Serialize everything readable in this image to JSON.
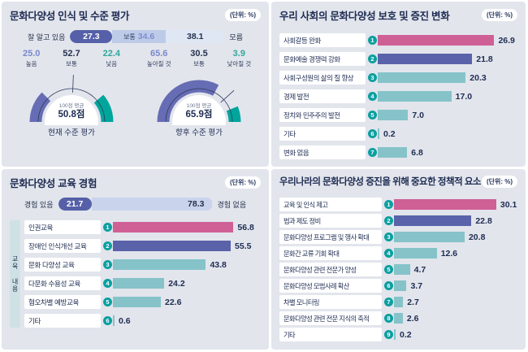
{
  "unit_label": "(단위: %)",
  "colors": {
    "pink": "#cf6096",
    "purple": "#5a62a9",
    "teal": "#85c3c9",
    "teal_dark": "#0b9fa0",
    "navy": "#1e2c52",
    "gauge_purple": "#666db4",
    "gauge_teal": "#00a59c",
    "stack_dark": "#5560a8",
    "stack_mid": "#bdcbe9",
    "stack_light": "#dfe7f4",
    "stack_rest": "#c9d4ec",
    "value_purple": "#7b88cc",
    "value_dark": "#26324f",
    "value_teal": "#2fa89e"
  },
  "chart_data": [
    {
      "id": "awareness_and_level",
      "type": "stacked-bar+gauges",
      "title": "문화다양성 인식 및 수준 평가",
      "unit": "(단위: %)",
      "awareness_segments": [
        {
          "label": "잘 알고 있음",
          "value": 27.3
        },
        {
          "label": "보통",
          "value": 34.6
        },
        {
          "label": "모름",
          "value": 38.1
        }
      ],
      "gauges": [
        {
          "caption": "현재 수준 평가",
          "center_label": "100점 평균",
          "center_value": "50.8점",
          "items": [
            {
              "label": "높음",
              "value": 25.0
            },
            {
              "label": "보통",
              "value": 52.7
            },
            {
              "label": "낮음",
              "value": 22.4
            }
          ]
        },
        {
          "caption": "향후 수준 평가",
          "center_label": "100점 평균",
          "center_value": "65.9점",
          "items": [
            {
              "label": "높아질 것",
              "value": 65.6
            },
            {
              "label": "보통",
              "value": 30.5
            },
            {
              "label": "낮아질 것",
              "value": 3.9
            }
          ]
        }
      ]
    },
    {
      "id": "protection_promotion_change",
      "type": "bar",
      "title": "우리 사회의 문화다양성 보호 및 증진 변화",
      "unit": "(단위: %)",
      "orientation": "horizontal",
      "categories": [
        "사회갈등 완화",
        "문화예술 경쟁력 강화",
        "사회구성원의 삶의 질 향상",
        "경제 발전",
        "정치와 민주주의 발전",
        "기타",
        "변화 없음"
      ],
      "values": [
        26.9,
        21.8,
        20.3,
        17.0,
        7.0,
        0.2,
        6.8
      ],
      "bar_colors": [
        "pink",
        "purple",
        "teal",
        "teal",
        "teal",
        "teal",
        "teal"
      ],
      "xmax": 30
    },
    {
      "id": "education_experience",
      "type": "stacked-bar+bar",
      "title": "문화다양성 교육 경험",
      "unit": "(단위: %)",
      "experience_segments": [
        {
          "label": "경험 있음",
          "value": 21.7
        },
        {
          "label": "경험 없음",
          "value": 78.3
        }
      ],
      "group_label": "교육 내용",
      "orientation": "horizontal",
      "categories": [
        "인권교육",
        "장애인 인식개선 교육",
        "문화 다양성 교육",
        "다문화 수용성 교육",
        "혐오차별 예방교육",
        "기타"
      ],
      "values": [
        56.8,
        55.5,
        43.8,
        24.2,
        22.6,
        0.6
      ],
      "bar_colors": [
        "pink",
        "purple",
        "teal",
        "teal",
        "teal",
        "teal"
      ],
      "xmax": 62
    },
    {
      "id": "policy_factors",
      "type": "bar",
      "title": "우리나라의 문화다양성 증진을 위해 중요한 정책적 요소",
      "unit": "(단위: %)",
      "orientation": "horizontal",
      "categories": [
        "교육 및 인식 제고",
        "법과 제도 정비",
        "문화다양성 프로그램 및 행사 확대",
        "문화간 교류 기회 확대",
        "문화다양성 관련 전문가 양성",
        "문화다양성 모범사례 확산",
        "차별 모니터링",
        "문화다양성 관련 전문 지식의 축적",
        "기타"
      ],
      "values": [
        30.1,
        22.8,
        20.8,
        12.6,
        4.7,
        3.7,
        2.7,
        2.6,
        0.2
      ],
      "bar_colors": [
        "pink",
        "purple",
        "teal",
        "teal",
        "teal",
        "teal",
        "teal",
        "teal",
        "teal"
      ],
      "xmax": 33
    }
  ]
}
